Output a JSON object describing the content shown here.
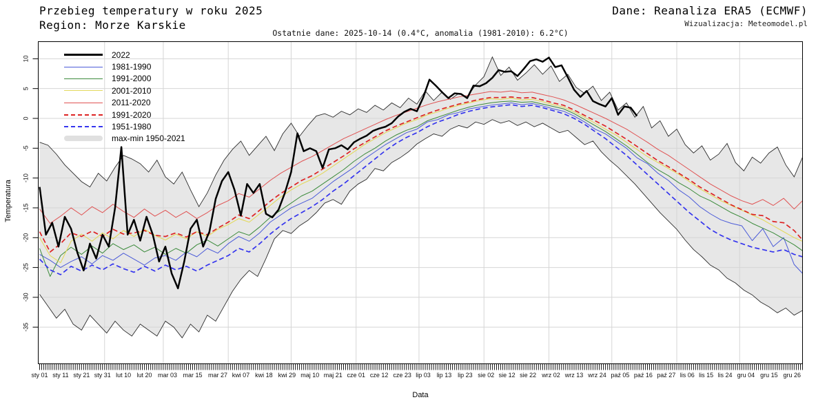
{
  "header": {
    "title": "Przebieg temperatury w roku 2025",
    "region": "Region: Morze Karskie",
    "source": "Dane: Reanaliza ERA5 (ECMWF)",
    "credit": "Wizualizacja: Meteomodel.pl",
    "subtitle": "Ostatnie dane: 2025-10-14 (0.4°C, anomalia (1981-2010): 6.2°C)"
  },
  "axes": {
    "ylabel": "Temperatura",
    "xlabel": "Data"
  },
  "colors": {
    "band_fill": "#e7e7e7",
    "band_edge": "#2b2b2b",
    "grid": "#d5d5d5",
    "frame": "#000000",
    "tick": "#000000"
  },
  "chart_data": {
    "type": "line",
    "title": "Przebieg temperatury w roku 2025 — Morze Karskie",
    "xlabel": "Data",
    "ylabel": "Temperatura",
    "ylim": [
      -41,
      13
    ],
    "y_ticks": [
      10,
      5,
      0,
      -5,
      -10,
      -15,
      -20,
      -25,
      -30,
      -35
    ],
    "days_total": 364,
    "month_start_days": [
      31,
      59,
      90,
      120,
      151,
      181,
      212,
      243,
      273,
      304,
      334
    ],
    "x_ticks": [
      {
        "label": "sty 01",
        "day": 0
      },
      {
        "label": "sty 11",
        "day": 10
      },
      {
        "label": "sty 21",
        "day": 20
      },
      {
        "label": "sty 31",
        "day": 30
      },
      {
        "label": "lut 10",
        "day": 40
      },
      {
        "label": "lut 20",
        "day": 50
      },
      {
        "label": "mar 03",
        "day": 61
      },
      {
        "label": "mar 15",
        "day": 73
      },
      {
        "label": "mar 27",
        "day": 85
      },
      {
        "label": "kwi 07",
        "day": 96
      },
      {
        "label": "kwi 18",
        "day": 107
      },
      {
        "label": "kwi 29",
        "day": 118
      },
      {
        "label": "maj 10",
        "day": 129
      },
      {
        "label": "maj 21",
        "day": 140
      },
      {
        "label": "cze 01",
        "day": 151
      },
      {
        "label": "cze 12",
        "day": 162
      },
      {
        "label": "cze 23",
        "day": 173
      },
      {
        "label": "lip 03",
        "day": 183
      },
      {
        "label": "lip 13",
        "day": 193
      },
      {
        "label": "lip 23",
        "day": 203
      },
      {
        "label": "sie 02",
        "day": 213
      },
      {
        "label": "sie 12",
        "day": 223
      },
      {
        "label": "sie 22",
        "day": 233
      },
      {
        "label": "wrz 02",
        "day": 244
      },
      {
        "label": "wrz 13",
        "day": 255
      },
      {
        "label": "wrz 24",
        "day": 266
      },
      {
        "label": "paź 05",
        "day": 277
      },
      {
        "label": "paź 16",
        "day": 288
      },
      {
        "label": "paź 27",
        "day": 299
      },
      {
        "label": "lis 06",
        "day": 309
      },
      {
        "label": "lis 15",
        "day": 318
      },
      {
        "label": "lis 24",
        "day": 327
      },
      {
        "label": "gru 04",
        "day": 337
      },
      {
        "label": "gru 15",
        "day": 348
      },
      {
        "label": "gru 26",
        "day": 359
      }
    ],
    "band": {
      "name": "max-min 1950-2021",
      "step": 4,
      "max": [
        -4.0,
        -4.5,
        -6.0,
        -7.8,
        -9.2,
        -10.6,
        -11.5,
        -9.2,
        -10.5,
        -8.2,
        -6.2,
        -6.8,
        -7.6,
        -9.0,
        -7.0,
        -9.8,
        -11.0,
        -9.0,
        -12.0,
        -14.8,
        -12.5,
        -9.5,
        -7.0,
        -5.2,
        -3.8,
        -6.2,
        -4.6,
        -3.0,
        -5.4,
        -2.6,
        -0.8,
        -3.0,
        -1.2,
        0.4,
        0.8,
        0.2,
        1.2,
        0.6,
        1.6,
        1.0,
        2.2,
        1.4,
        2.6,
        1.8,
        3.4,
        2.4,
        4.6,
        3.0,
        4.4,
        3.2,
        4.2,
        3.6,
        5.6,
        7.0,
        10.3,
        7.2,
        8.6,
        6.4,
        7.6,
        9.0,
        7.4,
        8.8,
        6.2,
        7.4,
        5.2,
        4.2,
        5.4,
        3.0,
        4.4,
        1.4,
        2.6,
        0.2,
        2.0,
        -1.6,
        -0.4,
        -3.0,
        -1.8,
        -4.4,
        -5.8,
        -4.6,
        -7.0,
        -6.0,
        -4.2,
        -7.4,
        -8.8,
        -6.5,
        -7.5,
        -5.8,
        -4.8,
        -7.8,
        -9.8,
        -6.5
      ],
      "min": [
        -29.5,
        -31.5,
        -33.5,
        -32.0,
        -34.5,
        -35.5,
        -33.0,
        -34.5,
        -36.0,
        -34.0,
        -35.5,
        -36.5,
        -34.5,
        -35.5,
        -36.5,
        -34.0,
        -35.0,
        -36.8,
        -34.5,
        -35.8,
        -33.0,
        -34.0,
        -31.5,
        -29.0,
        -27.0,
        -25.5,
        -26.5,
        -23.5,
        -20.2,
        -18.8,
        -19.3,
        -18.0,
        -17.1,
        -15.8,
        -14.2,
        -13.6,
        -14.4,
        -12.2,
        -11.0,
        -10.2,
        -8.4,
        -8.8,
        -7.4,
        -6.6,
        -5.6,
        -4.3,
        -3.4,
        -2.6,
        -3.0,
        -1.8,
        -1.2,
        -1.6,
        -0.6,
        -1.0,
        -0.2,
        -0.8,
        -0.4,
        -1.2,
        -0.6,
        -1.4,
        -0.8,
        -1.6,
        -2.4,
        -2.0,
        -3.2,
        -4.4,
        -3.8,
        -5.6,
        -7.0,
        -8.2,
        -9.6,
        -11.0,
        -12.6,
        -14.2,
        -15.8,
        -17.2,
        -18.6,
        -20.4,
        -22.0,
        -23.2,
        -24.6,
        -25.4,
        -26.8,
        -27.6,
        -28.8,
        -29.6,
        -30.8,
        -31.6,
        -32.6,
        -31.8,
        -33.0,
        -32.2
      ]
    },
    "series": [
      {
        "name": "1981-1990",
        "color": "#4a5ad8",
        "width": 1,
        "dash": null,
        "step": 5,
        "values": [
          -22.8,
          -23.8,
          -25.0,
          -24.0,
          -23.2,
          -24.4,
          -23.0,
          -23.8,
          -22.6,
          -23.6,
          -24.6,
          -23.4,
          -23.0,
          -23.8,
          -22.4,
          -23.2,
          -21.8,
          -22.6,
          -21.0,
          -19.8,
          -20.6,
          -19.2,
          -17.4,
          -16.2,
          -15.0,
          -14.2,
          -13.4,
          -12.0,
          -10.6,
          -9.4,
          -8.2,
          -6.8,
          -5.6,
          -4.4,
          -3.4,
          -2.4,
          -1.8,
          -0.6,
          -0.2,
          0.6,
          1.0,
          1.6,
          1.9,
          2.2,
          2.4,
          2.6,
          2.3,
          2.5,
          2.1,
          1.6,
          1.2,
          0.4,
          -0.6,
          -1.8,
          -2.6,
          -3.8,
          -5.0,
          -6.6,
          -7.6,
          -9.2,
          -10.4,
          -12.0,
          -13.2,
          -14.8,
          -16.0,
          -17.0,
          -17.6,
          -18.0,
          -20.5,
          -18.5,
          -21.5,
          -20.0,
          -24.5,
          -26.0
        ]
      },
      {
        "name": "1991-2000",
        "color": "#3a8a3a",
        "width": 1,
        "dash": null,
        "step": 5,
        "values": [
          -21.8,
          -26.5,
          -23.0,
          -21.6,
          -22.8,
          -21.4,
          -22.6,
          -21.0,
          -22.0,
          -21.2,
          -22.4,
          -21.6,
          -22.8,
          -21.8,
          -22.6,
          -21.2,
          -20.4,
          -21.4,
          -20.2,
          -19.0,
          -19.6,
          -18.2,
          -16.6,
          -15.4,
          -14.2,
          -13.0,
          -12.2,
          -11.0,
          -9.8,
          -8.6,
          -7.2,
          -6.0,
          -5.0,
          -3.8,
          -2.8,
          -2.0,
          -1.4,
          -0.4,
          0.2,
          0.8,
          1.4,
          1.9,
          2.3,
          2.6,
          2.8,
          2.9,
          2.7,
          2.8,
          2.4,
          2.0,
          1.6,
          0.8,
          -0.2,
          -1.2,
          -2.2,
          -3.4,
          -4.6,
          -6.0,
          -7.4,
          -8.6,
          -9.6,
          -10.8,
          -11.8,
          -13.0,
          -13.8,
          -14.8,
          -15.8,
          -16.6,
          -17.6,
          -18.4,
          -19.2,
          -20.2,
          -21.2,
          -22.2
        ]
      },
      {
        "name": "2001-2010",
        "color": "#e3d95c",
        "width": 1.1,
        "dash": null,
        "step": 5,
        "values": [
          -20.0,
          -23.0,
          -24.2,
          -20.6,
          -19.4,
          -20.6,
          -19.2,
          -20.2,
          -18.8,
          -19.8,
          -18.6,
          -19.6,
          -20.4,
          -19.4,
          -20.2,
          -19.0,
          -19.8,
          -18.6,
          -17.8,
          -16.8,
          -17.4,
          -16.0,
          -14.6,
          -13.2,
          -12.0,
          -11.0,
          -10.2,
          -9.2,
          -8.0,
          -6.8,
          -5.6,
          -4.4,
          -3.4,
          -2.4,
          -1.6,
          -0.8,
          -0.2,
          0.6,
          1.1,
          1.7,
          2.2,
          2.6,
          3.0,
          3.3,
          3.2,
          3.4,
          3.1,
          3.2,
          2.8,
          2.3,
          1.9,
          1.1,
          0.2,
          -0.8,
          -1.8,
          -2.8,
          -4.0,
          -5.2,
          -6.4,
          -7.4,
          -8.4,
          -9.4,
          -10.6,
          -11.8,
          -12.8,
          -13.8,
          -14.6,
          -15.4,
          -16.2,
          -17.0,
          -18.0,
          -19.0,
          -20.0,
          -20.6
        ]
      },
      {
        "name": "2011-2020",
        "color": "#e05252",
        "width": 1,
        "dash": null,
        "step": 5,
        "values": [
          -15.2,
          -17.6,
          -16.4,
          -15.0,
          -16.2,
          -14.8,
          -15.8,
          -14.4,
          -15.6,
          -16.6,
          -15.2,
          -16.4,
          -15.4,
          -16.6,
          -15.6,
          -16.8,
          -15.8,
          -14.6,
          -13.8,
          -12.6,
          -13.2,
          -11.8,
          -10.4,
          -9.2,
          -8.2,
          -7.2,
          -6.4,
          -5.4,
          -4.4,
          -3.4,
          -2.6,
          -1.8,
          -1.0,
          -0.2,
          0.5,
          1.1,
          1.7,
          2.3,
          2.8,
          3.2,
          3.6,
          3.9,
          4.2,
          4.5,
          4.4,
          4.6,
          4.3,
          4.4,
          4.0,
          3.6,
          3.1,
          2.4,
          1.6,
          0.8,
          0.0,
          -0.9,
          -1.8,
          -2.9,
          -4.0,
          -5.2,
          -6.2,
          -7.4,
          -8.6,
          -9.8,
          -11.0,
          -12.0,
          -13.0,
          -13.8,
          -14.4,
          -13.6,
          -14.6,
          -13.4,
          -15.2,
          -13.8
        ]
      },
      {
        "name": "1991-2020",
        "color": "#dd2222",
        "width": 1.7,
        "dash": "7,4",
        "step": 5,
        "values": [
          -19.0,
          -22.4,
          -21.0,
          -19.2,
          -19.8,
          -18.9,
          -19.8,
          -18.6,
          -19.4,
          -19.2,
          -18.8,
          -19.6,
          -19.8,
          -19.2,
          -19.9,
          -19.0,
          -19.5,
          -18.4,
          -17.4,
          -16.2,
          -16.8,
          -15.4,
          -13.9,
          -12.6,
          -11.5,
          -10.4,
          -9.6,
          -8.5,
          -7.4,
          -6.3,
          -5.1,
          -4.1,
          -3.1,
          -2.1,
          -1.3,
          -0.6,
          0.1,
          0.8,
          1.4,
          1.9,
          2.4,
          2.8,
          3.2,
          3.5,
          3.5,
          3.6,
          3.4,
          3.5,
          3.1,
          2.6,
          2.2,
          1.4,
          0.5,
          -0.4,
          -1.3,
          -2.4,
          -3.5,
          -4.7,
          -5.9,
          -7.1,
          -8.1,
          -9.2,
          -10.3,
          -11.5,
          -12.5,
          -13.5,
          -14.5,
          -15.3,
          -16.1,
          -16.3,
          -17.3,
          -17.5,
          -18.8,
          -20.4
        ]
      },
      {
        "name": "1951-1980",
        "color": "#3434ee",
        "width": 1.7,
        "dash": "7,4",
        "step": 5,
        "values": [
          -23.6,
          -25.4,
          -26.2,
          -24.8,
          -25.6,
          -24.6,
          -25.4,
          -24.4,
          -25.2,
          -25.8,
          -24.8,
          -25.6,
          -24.6,
          -25.4,
          -24.8,
          -25.6,
          -24.6,
          -23.8,
          -23.0,
          -21.8,
          -22.4,
          -21.0,
          -19.4,
          -18.0,
          -16.8,
          -15.8,
          -14.8,
          -13.6,
          -12.2,
          -11.0,
          -9.6,
          -8.2,
          -6.8,
          -5.4,
          -4.2,
          -3.2,
          -2.4,
          -1.4,
          -0.6,
          0.0,
          0.7,
          1.2,
          1.6,
          1.9,
          2.1,
          2.3,
          2.0,
          2.2,
          1.8,
          1.3,
          0.8,
          0.0,
          -1.0,
          -2.2,
          -3.4,
          -4.8,
          -6.2,
          -7.8,
          -9.4,
          -11.0,
          -12.6,
          -14.2,
          -15.8,
          -17.2,
          -18.6,
          -19.6,
          -20.4,
          -21.0,
          -21.6,
          -22.0,
          -22.4,
          -22.0,
          -22.8,
          -23.2
        ]
      },
      {
        "name": "2022",
        "color": "#000000",
        "width": 2.5,
        "dash": null,
        "step": 3,
        "values": [
          -11.5,
          -19.5,
          -17.5,
          -21.5,
          -16.5,
          -18.5,
          -22.5,
          -25.5,
          -21.0,
          -23.5,
          -19.5,
          -21.5,
          -15.0,
          -4.8,
          -19.5,
          -17.0,
          -20.5,
          -16.5,
          -19.5,
          -24.0,
          -21.5,
          -26.0,
          -28.5,
          -24.0,
          -18.5,
          -17.0,
          -21.5,
          -19.0,
          -13.5,
          -10.5,
          -9.0,
          -12.0,
          -16.3,
          -11.0,
          -12.5,
          -11.0,
          -16.0,
          -16.6,
          -15.3,
          -12.5,
          -9.0,
          -2.5,
          -5.5,
          -5.0,
          -5.5,
          -8.3,
          -5.2,
          -5.0,
          -4.5,
          -5.2,
          -4.0,
          -3.4,
          -2.9,
          -2.1,
          -1.7,
          -1.4,
          -0.8,
          0.3,
          1.1,
          1.6,
          1.2,
          3.5,
          6.5,
          5.5,
          4.4,
          3.4,
          4.2,
          4.1,
          3.4,
          5.5,
          5.4,
          5.9,
          6.8,
          8.1,
          7.8,
          7.9,
          7.1,
          8.3,
          9.6,
          9.9,
          9.5,
          10.2,
          8.6,
          8.9,
          6.9,
          4.8,
          3.6,
          4.6,
          2.9,
          2.4,
          2.0,
          3.4,
          0.6,
          2.0,
          1.8,
          0.4
        ]
      }
    ],
    "legend_order": [
      "2022",
      "1981-1990",
      "1991-2000",
      "2001-2010",
      "2011-2020",
      "1991-2020",
      "1951-1980",
      "max-min 1950-2021"
    ],
    "legend_position": "upper-left",
    "grid": true
  }
}
